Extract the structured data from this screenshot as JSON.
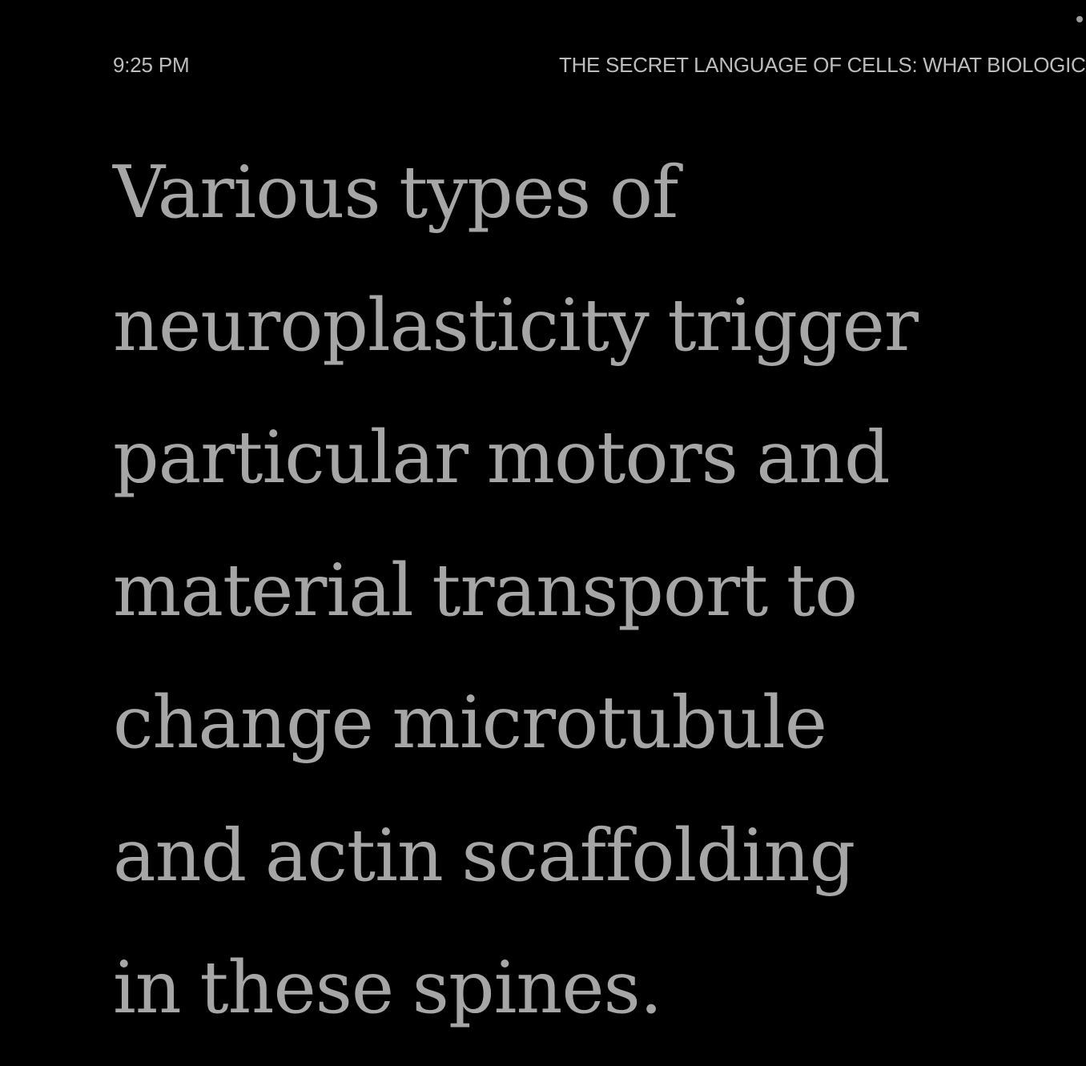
{
  "status_bar": {
    "time": "9:25 PM",
    "book_title": "THE SECRET LANGUAGE OF CELLS: WHAT BIOLOGICAL CONVERSATIONS TELL US ABOUT THE BRAIN-GUT CONNECTION, INFECTIOUS DISEASES, AND FINDING A CURE FOR CANCER"
  },
  "reader": {
    "lines": [
      "Various types of",
      "neuroplasticity trigger",
      "particular motors and",
      "material transport to",
      "change microtubule",
      "and actin scaffolding",
      "in these spines."
    ]
  },
  "colors": {
    "background": "#000000",
    "text": "#a6a6a6",
    "status_text": "#bdbdbd"
  }
}
